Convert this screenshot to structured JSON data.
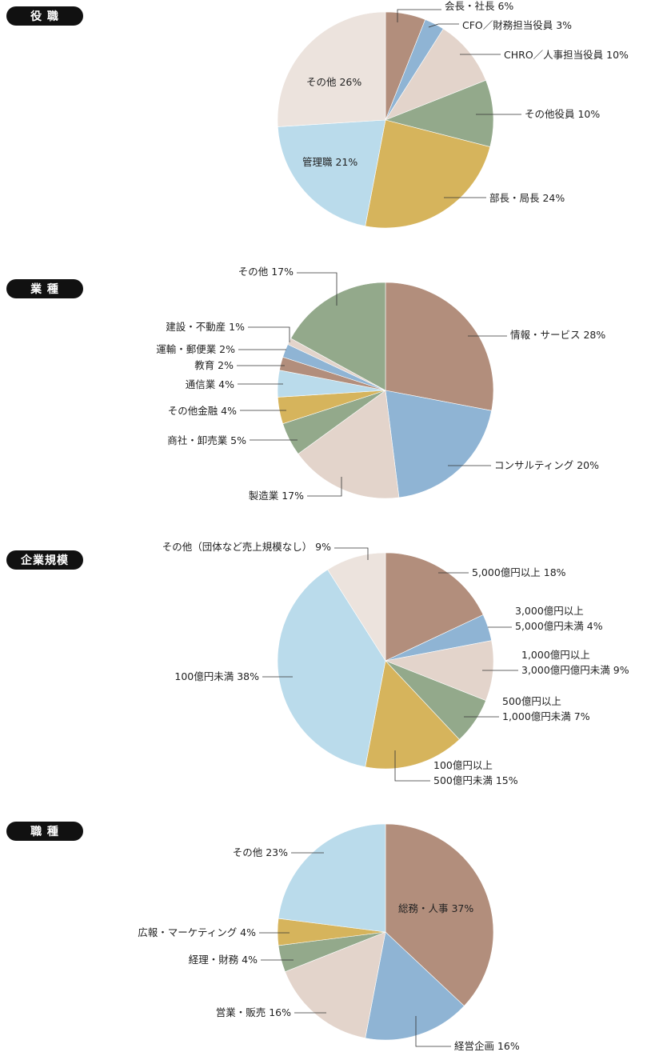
{
  "chart_data": [
    {
      "type": "pie",
      "title": "役 職",
      "slices": [
        {
          "label": "会長・社長 6%",
          "value": 6,
          "color": "#b28e7c"
        },
        {
          "label": "CFO／財務担当役員 3%",
          "value": 3,
          "color": "#8fb4d4"
        },
        {
          "label": "CHRO／人事担当役員 10%",
          "value": 10,
          "color": "#e3d4cb"
        },
        {
          "label": "その他役員 10%",
          "value": 10,
          "color": "#93a98b"
        },
        {
          "label": "部長・局長 24%",
          "value": 24,
          "color": "#d6b45c"
        },
        {
          "label": "管理職 21%",
          "value": 21,
          "color": "#badbeb"
        },
        {
          "label": "その他 26%",
          "value": 26,
          "color": "#ece3dd"
        }
      ]
    },
    {
      "type": "pie",
      "title": "業 種",
      "slices": [
        {
          "label": "情報・サービス 28%",
          "value": 28,
          "color": "#b28e7c"
        },
        {
          "label": "コンサルティング 20%",
          "value": 20,
          "color": "#8fb4d4"
        },
        {
          "label": "製造業 17%",
          "value": 17,
          "color": "#e3d4cb"
        },
        {
          "label": "商社・卸売業 5%",
          "value": 5,
          "color": "#93a98b"
        },
        {
          "label": "その他金融 4%",
          "value": 4,
          "color": "#d6b45c"
        },
        {
          "label": "通信業 4%",
          "value": 4,
          "color": "#badbeb"
        },
        {
          "label": "教育 2%",
          "value": 2,
          "color": "#b28e7c"
        },
        {
          "label": "運輸・郵便業 2%",
          "value": 2,
          "color": "#8fb4d4"
        },
        {
          "label": "建設・不動産 1%",
          "value": 1,
          "color": "#e3d4cb"
        },
        {
          "label": "その他 17%",
          "value": 17,
          "color": "#93a98b"
        }
      ]
    },
    {
      "type": "pie",
      "title": "企業規模",
      "slices": [
        {
          "label": "5,000億円以上 18%",
          "value": 18,
          "color": "#b28e7c"
        },
        {
          "label": "3,000億円以上\n5,000億円未満 4%",
          "value": 4,
          "color": "#8fb4d4"
        },
        {
          "label": "1,000億円以上\n3,000億円億円未満 9%",
          "value": 9,
          "color": "#e3d4cb"
        },
        {
          "label": "500億円以上\n1,000億円未満 7%",
          "value": 7,
          "color": "#93a98b"
        },
        {
          "label": "100億円以上\n500億円未満 15%",
          "value": 15,
          "color": "#d6b45c"
        },
        {
          "label": "100億円未満 38%",
          "value": 38,
          "color": "#badbeb"
        },
        {
          "label": "その他（団体など売上規模なし） 9%",
          "value": 9,
          "color": "#ece3dd"
        }
      ]
    },
    {
      "type": "pie",
      "title": "職 種",
      "slices": [
        {
          "label": "総務・人事 37%",
          "value": 37,
          "color": "#b28e7c"
        },
        {
          "label": "経営企画 16%",
          "value": 16,
          "color": "#8fb4d4"
        },
        {
          "label": "営業・販売 16%",
          "value": 16,
          "color": "#e3d4cb"
        },
        {
          "label": "経理・財務 4%",
          "value": 4,
          "color": "#93a98b"
        },
        {
          "label": "広報・マーケティング 4%",
          "value": 4,
          "color": "#d6b45c"
        },
        {
          "label": "その他 23%",
          "value": 23,
          "color": "#badbeb"
        }
      ]
    }
  ]
}
